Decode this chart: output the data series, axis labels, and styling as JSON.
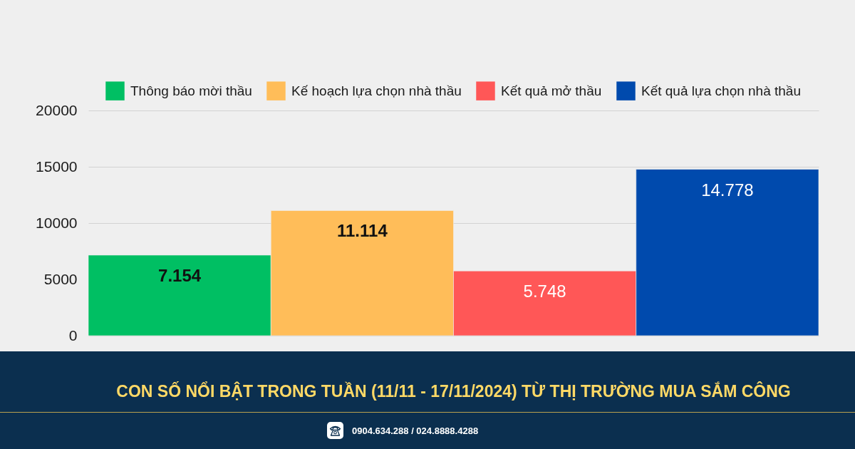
{
  "chart_data": {
    "type": "bar",
    "title": "CON SỐ NỔI BẬT TRONG TUẦN (11/11 - 17/11/2024) TỪ THỊ TRƯỜNG MUA SẮM CÔNG",
    "categories": [
      null,
      null,
      null,
      null
    ],
    "series": [
      {
        "name": "Thông báo mời thầu",
        "color": "#00bf63",
        "values": [
          7154,
          null,
          null,
          null
        ],
        "value_labels": [
          "7.154",
          null,
          null,
          null
        ]
      },
      {
        "name": "Kế hoạch lựa chọn nhà thầu",
        "color": "#ffbd59",
        "values": [
          null,
          11114,
          null,
          null
        ],
        "value_labels": [
          null,
          "11.114",
          null,
          null
        ]
      },
      {
        "name": "Kết quả mở thầu",
        "color": "#ff5757",
        "values": [
          null,
          null,
          5748,
          null
        ],
        "value_labels": [
          null,
          null,
          "5.748",
          null
        ]
      },
      {
        "name": "Kết quả lựa chọn nhà thầu",
        "color": "#004aad",
        "values": [
          null,
          null,
          null,
          14778
        ],
        "value_labels": [
          null,
          null,
          null,
          "14.778"
        ]
      }
    ],
    "ylim": [
      0,
      20000
    ],
    "yticks": [
      0,
      5000,
      10000,
      15000,
      20000
    ],
    "grid": "y",
    "legend": "top",
    "tick_labels": "y",
    "annotations": [
      "0904.634.288 / 024.8888.4288"
    ]
  }
}
